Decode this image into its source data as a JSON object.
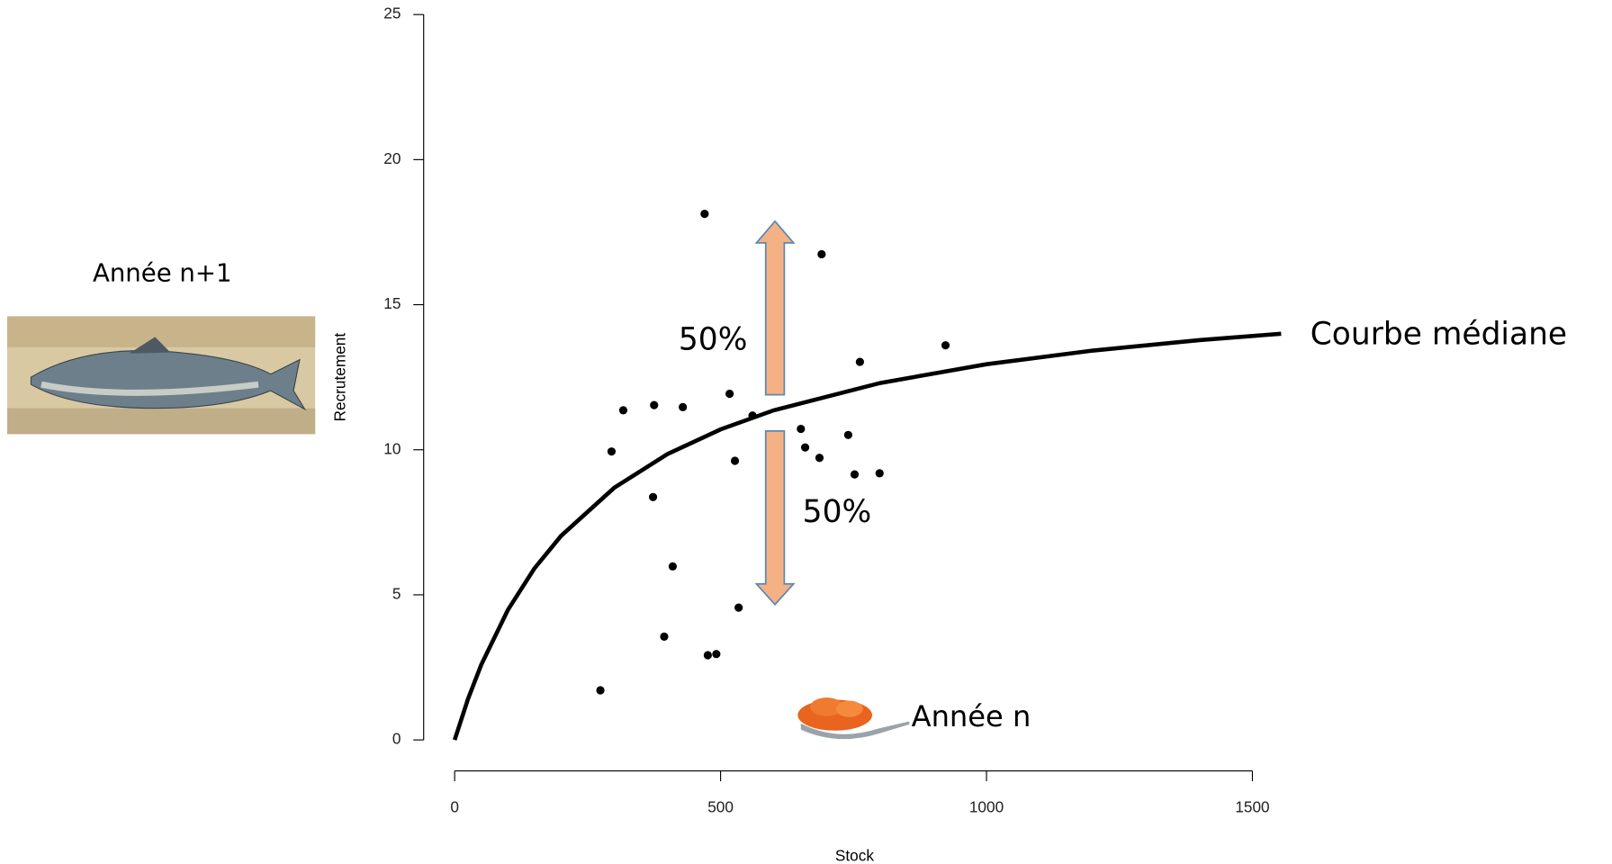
{
  "chart_data": {
    "type": "scatter",
    "x_label": "Stock",
    "y_label": "Recrutement",
    "xlim": [
      0,
      1500
    ],
    "ylim": [
      0,
      25
    ],
    "xticks": [
      0,
      500,
      1000,
      1500
    ],
    "yticks": [
      0,
      5,
      10,
      15,
      20,
      25
    ],
    "points": {
      "color": "#000000",
      "x": [
        274,
        295,
        317,
        375,
        373,
        394,
        410,
        429,
        470,
        476,
        492,
        517,
        527,
        534,
        560,
        651,
        659,
        686,
        690,
        740,
        752,
        762,
        799,
        923
      ],
      "values": [
        1.71,
        9.94,
        11.36,
        11.54,
        8.37,
        3.56,
        5.98,
        11.47,
        18.13,
        2.92,
        2.96,
        11.93,
        9.62,
        4.56,
        11.18,
        10.72,
        10.08,
        9.72,
        16.74,
        10.51,
        9.15,
        13.03,
        9.19,
        13.6
      ]
    },
    "curve": {
      "name": "Courbe médiane",
      "color": "#000000",
      "x": [
        0,
        25,
        50,
        100,
        150,
        200,
        300,
        400,
        500,
        600,
        800,
        1000,
        1200,
        1400,
        1554
      ],
      "values": [
        0,
        1.41,
        2.59,
        4.48,
        5.91,
        7.03,
        8.69,
        9.85,
        10.7,
        11.36,
        12.3,
        12.95,
        13.42,
        13.78,
        14.0
      ]
    },
    "annotations": {
      "upper_share": "50%",
      "lower_share": "50%",
      "year_next": "Année n+1",
      "year_current": "Année n"
    }
  }
}
